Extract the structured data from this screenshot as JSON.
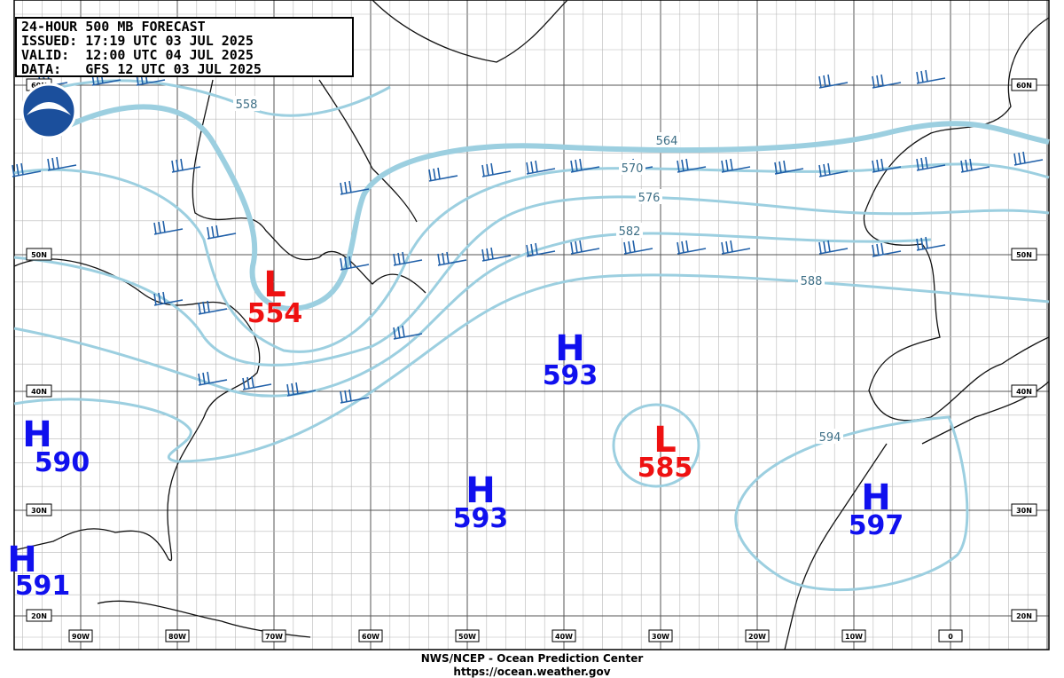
{
  "header": {
    "lines": [
      "24-HOUR 500 MB FORECAST",
      "ISSUED: 17:19 UTC 03 JUL 2025",
      "VALID:  12:00 UTC 04 JUL 2025",
      "DATA:   GFS 12 UTC 03 JUL 2025"
    ]
  },
  "map": {
    "latitude_labels": [
      "60N",
      "50N",
      "40N",
      "30N",
      "20N"
    ],
    "longitude_labels": [
      "90W",
      "80W",
      "70W",
      "60W",
      "50W",
      "40W",
      "30W",
      "20W",
      "10W",
      "0"
    ],
    "contour_labels": [
      558,
      564,
      570,
      576,
      582,
      588,
      594
    ],
    "pressure_centers": [
      {
        "type": "L",
        "value": 554
      },
      {
        "type": "H",
        "value": 593
      },
      {
        "type": "L",
        "value": 585
      },
      {
        "type": "H",
        "value": 593
      },
      {
        "type": "H",
        "value": 590
      },
      {
        "type": "H",
        "value": 591
      },
      {
        "type": "H",
        "value": 597
      }
    ]
  },
  "footer": {
    "agency": "NWS/NCEP - Ocean Prediction Center",
    "url": "https://ocean.weather.gov"
  }
}
